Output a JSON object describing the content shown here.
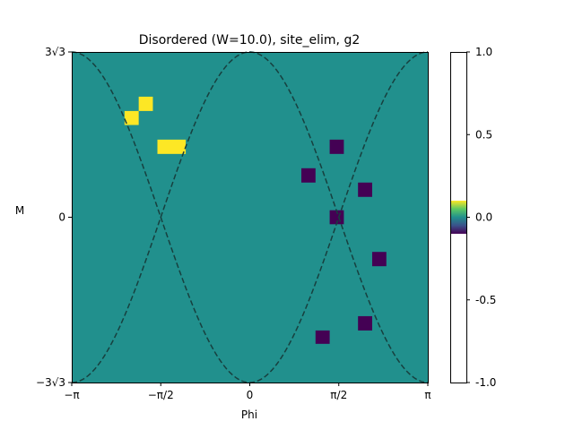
{
  "chart_data": {
    "type": "heatmap",
    "title": "Disordered (W=10.0), site_elim, g2",
    "xlabel": "Phi",
    "ylabel": "M",
    "x_range_radians": [
      -3.14159,
      3.14159
    ],
    "y_range": [
      -5.196,
      5.196
    ],
    "x_ticks": [
      {
        "value": -3.14159,
        "label": "−π"
      },
      {
        "value": -1.5708,
        "label": "−π/2"
      },
      {
        "value": 0,
        "label": "0"
      },
      {
        "value": 1.5708,
        "label": "π/2"
      },
      {
        "value": 3.14159,
        "label": "π"
      }
    ],
    "y_ticks": [
      {
        "value": 5.196,
        "label": "3√3"
      },
      {
        "value": 0,
        "label": "0"
      },
      {
        "value": -5.196,
        "label": "−3√3"
      }
    ],
    "background_value": 0.0,
    "cells": [
      {
        "phi_range": [
          -1.96,
          -1.71
        ],
        "m_range": [
          3.34,
          3.79
        ],
        "value": 1.0
      },
      {
        "phi_range": [
          -2.21,
          -1.96
        ],
        "m_range": [
          2.9,
          3.34
        ],
        "value": 1.0
      },
      {
        "phi_range": [
          -1.63,
          -1.13
        ],
        "m_range": [
          1.99,
          2.44
        ],
        "value": 1.0
      },
      {
        "phi_range": [
          1.41,
          1.66
        ],
        "m_range": [
          1.99,
          2.44
        ],
        "value": -1.0
      },
      {
        "phi_range": [
          0.91,
          1.16
        ],
        "m_range": [
          1.09,
          1.54
        ],
        "value": -1.0
      },
      {
        "phi_range": [
          1.91,
          2.16
        ],
        "m_range": [
          0.64,
          1.09
        ],
        "value": -1.0
      },
      {
        "phi_range": [
          1.41,
          1.66
        ],
        "m_range": [
          -0.22,
          0.22
        ],
        "value": -1.0
      },
      {
        "phi_range": [
          2.16,
          2.41
        ],
        "m_range": [
          -1.54,
          -1.09
        ],
        "value": -1.0
      },
      {
        "phi_range": [
          1.91,
          2.16
        ],
        "m_range": [
          -3.56,
          -3.11
        ],
        "value": -1.0
      },
      {
        "phi_range": [
          1.16,
          1.41
        ],
        "m_range": [
          -3.98,
          -3.56
        ],
        "value": -1.0
      }
    ],
    "curves": {
      "style": "dashed",
      "color": "#17403f",
      "functions": [
        "5.196*cos(phi)",
        "-5.196*cos(phi)"
      ]
    },
    "colorbar": {
      "range": [
        -1.0,
        1.0
      ],
      "visible_color_band": [
        -0.1,
        0.1
      ],
      "ticks": [
        {
          "value": 1.0,
          "label": "1.0"
        },
        {
          "value": 0.5,
          "label": "0.5"
        },
        {
          "value": 0.0,
          "label": "0.0"
        },
        {
          "value": -0.5,
          "label": "-0.5"
        },
        {
          "value": -1.0,
          "label": "-1.0"
        }
      ]
    },
    "colors": {
      "neutral": "#21908d",
      "positive": "#fde725",
      "negative": "#440154"
    }
  }
}
